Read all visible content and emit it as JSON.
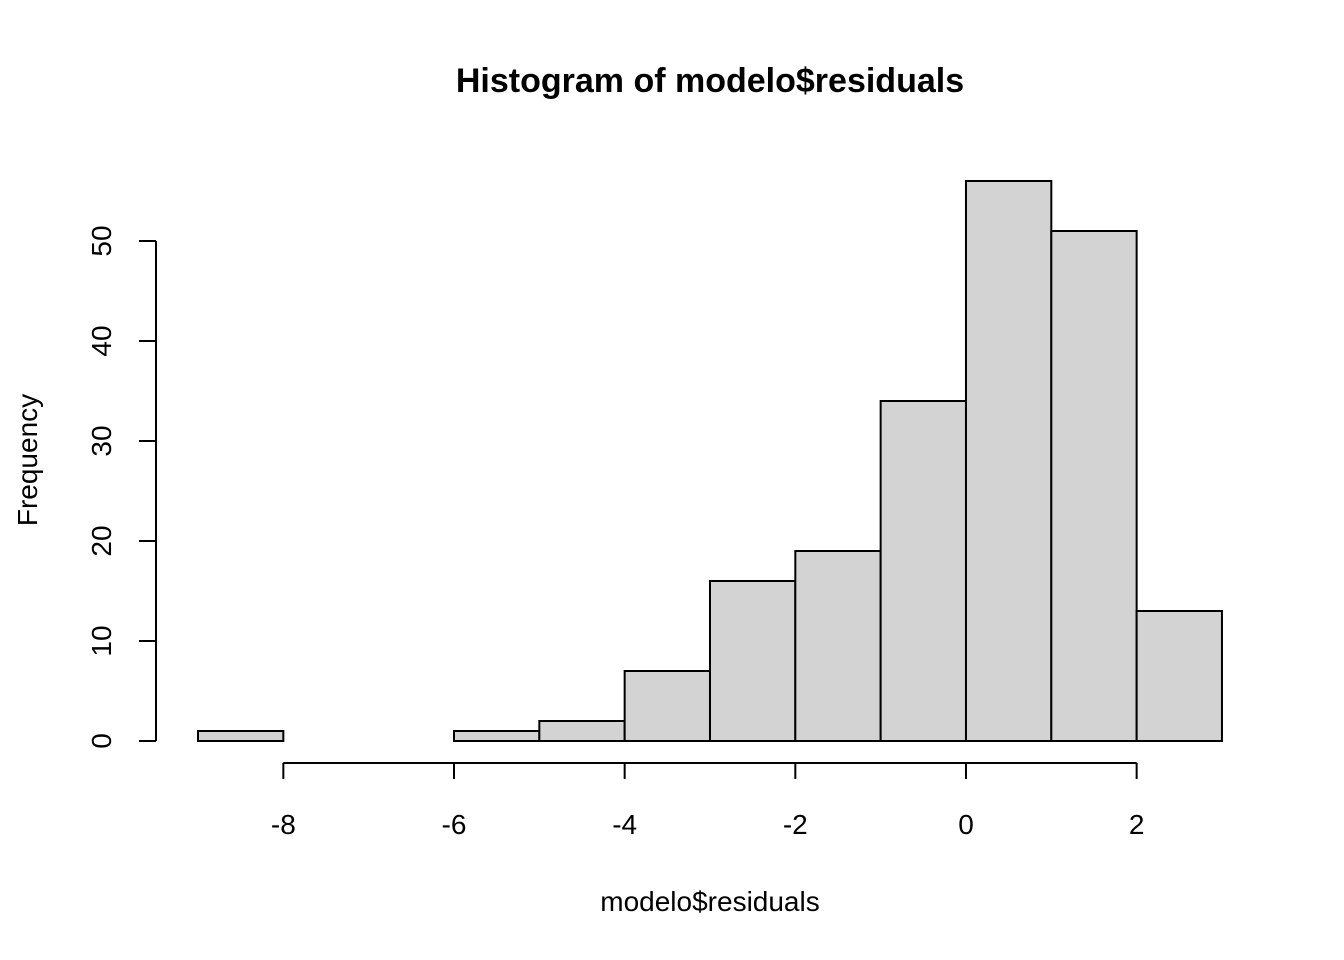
{
  "chart_data": {
    "type": "bar",
    "title": "Histogram of modelo$residuals",
    "xlabel": "modelo$residuals",
    "ylabel": "Frequency",
    "bins": [
      {
        "x0": -9,
        "x1": -8,
        "count": 1
      },
      {
        "x0": -8,
        "x1": -7,
        "count": 0
      },
      {
        "x0": -7,
        "x1": -6,
        "count": 0
      },
      {
        "x0": -6,
        "x1": -5,
        "count": 1
      },
      {
        "x0": -5,
        "x1": -4,
        "count": 2
      },
      {
        "x0": -4,
        "x1": -3,
        "count": 7
      },
      {
        "x0": -3,
        "x1": -2,
        "count": 16
      },
      {
        "x0": -2,
        "x1": -1,
        "count": 19
      },
      {
        "x0": -1,
        "x1": 0,
        "count": 34
      },
      {
        "x0": 0,
        "x1": 1,
        "count": 56
      },
      {
        "x0": 1,
        "x1": 2,
        "count": 51
      },
      {
        "x0": 2,
        "x1": 3,
        "count": 13
      }
    ],
    "xticks": [
      -8,
      -6,
      -4,
      -2,
      0,
      2
    ],
    "yticks": [
      0,
      10,
      20,
      30,
      40,
      50
    ],
    "xlim": [
      -9,
      3
    ],
    "ylim": [
      0,
      56
    ],
    "grid": false,
    "colors": {
      "bar_fill": "#d3d3d3",
      "bar_stroke": "#000000"
    }
  }
}
